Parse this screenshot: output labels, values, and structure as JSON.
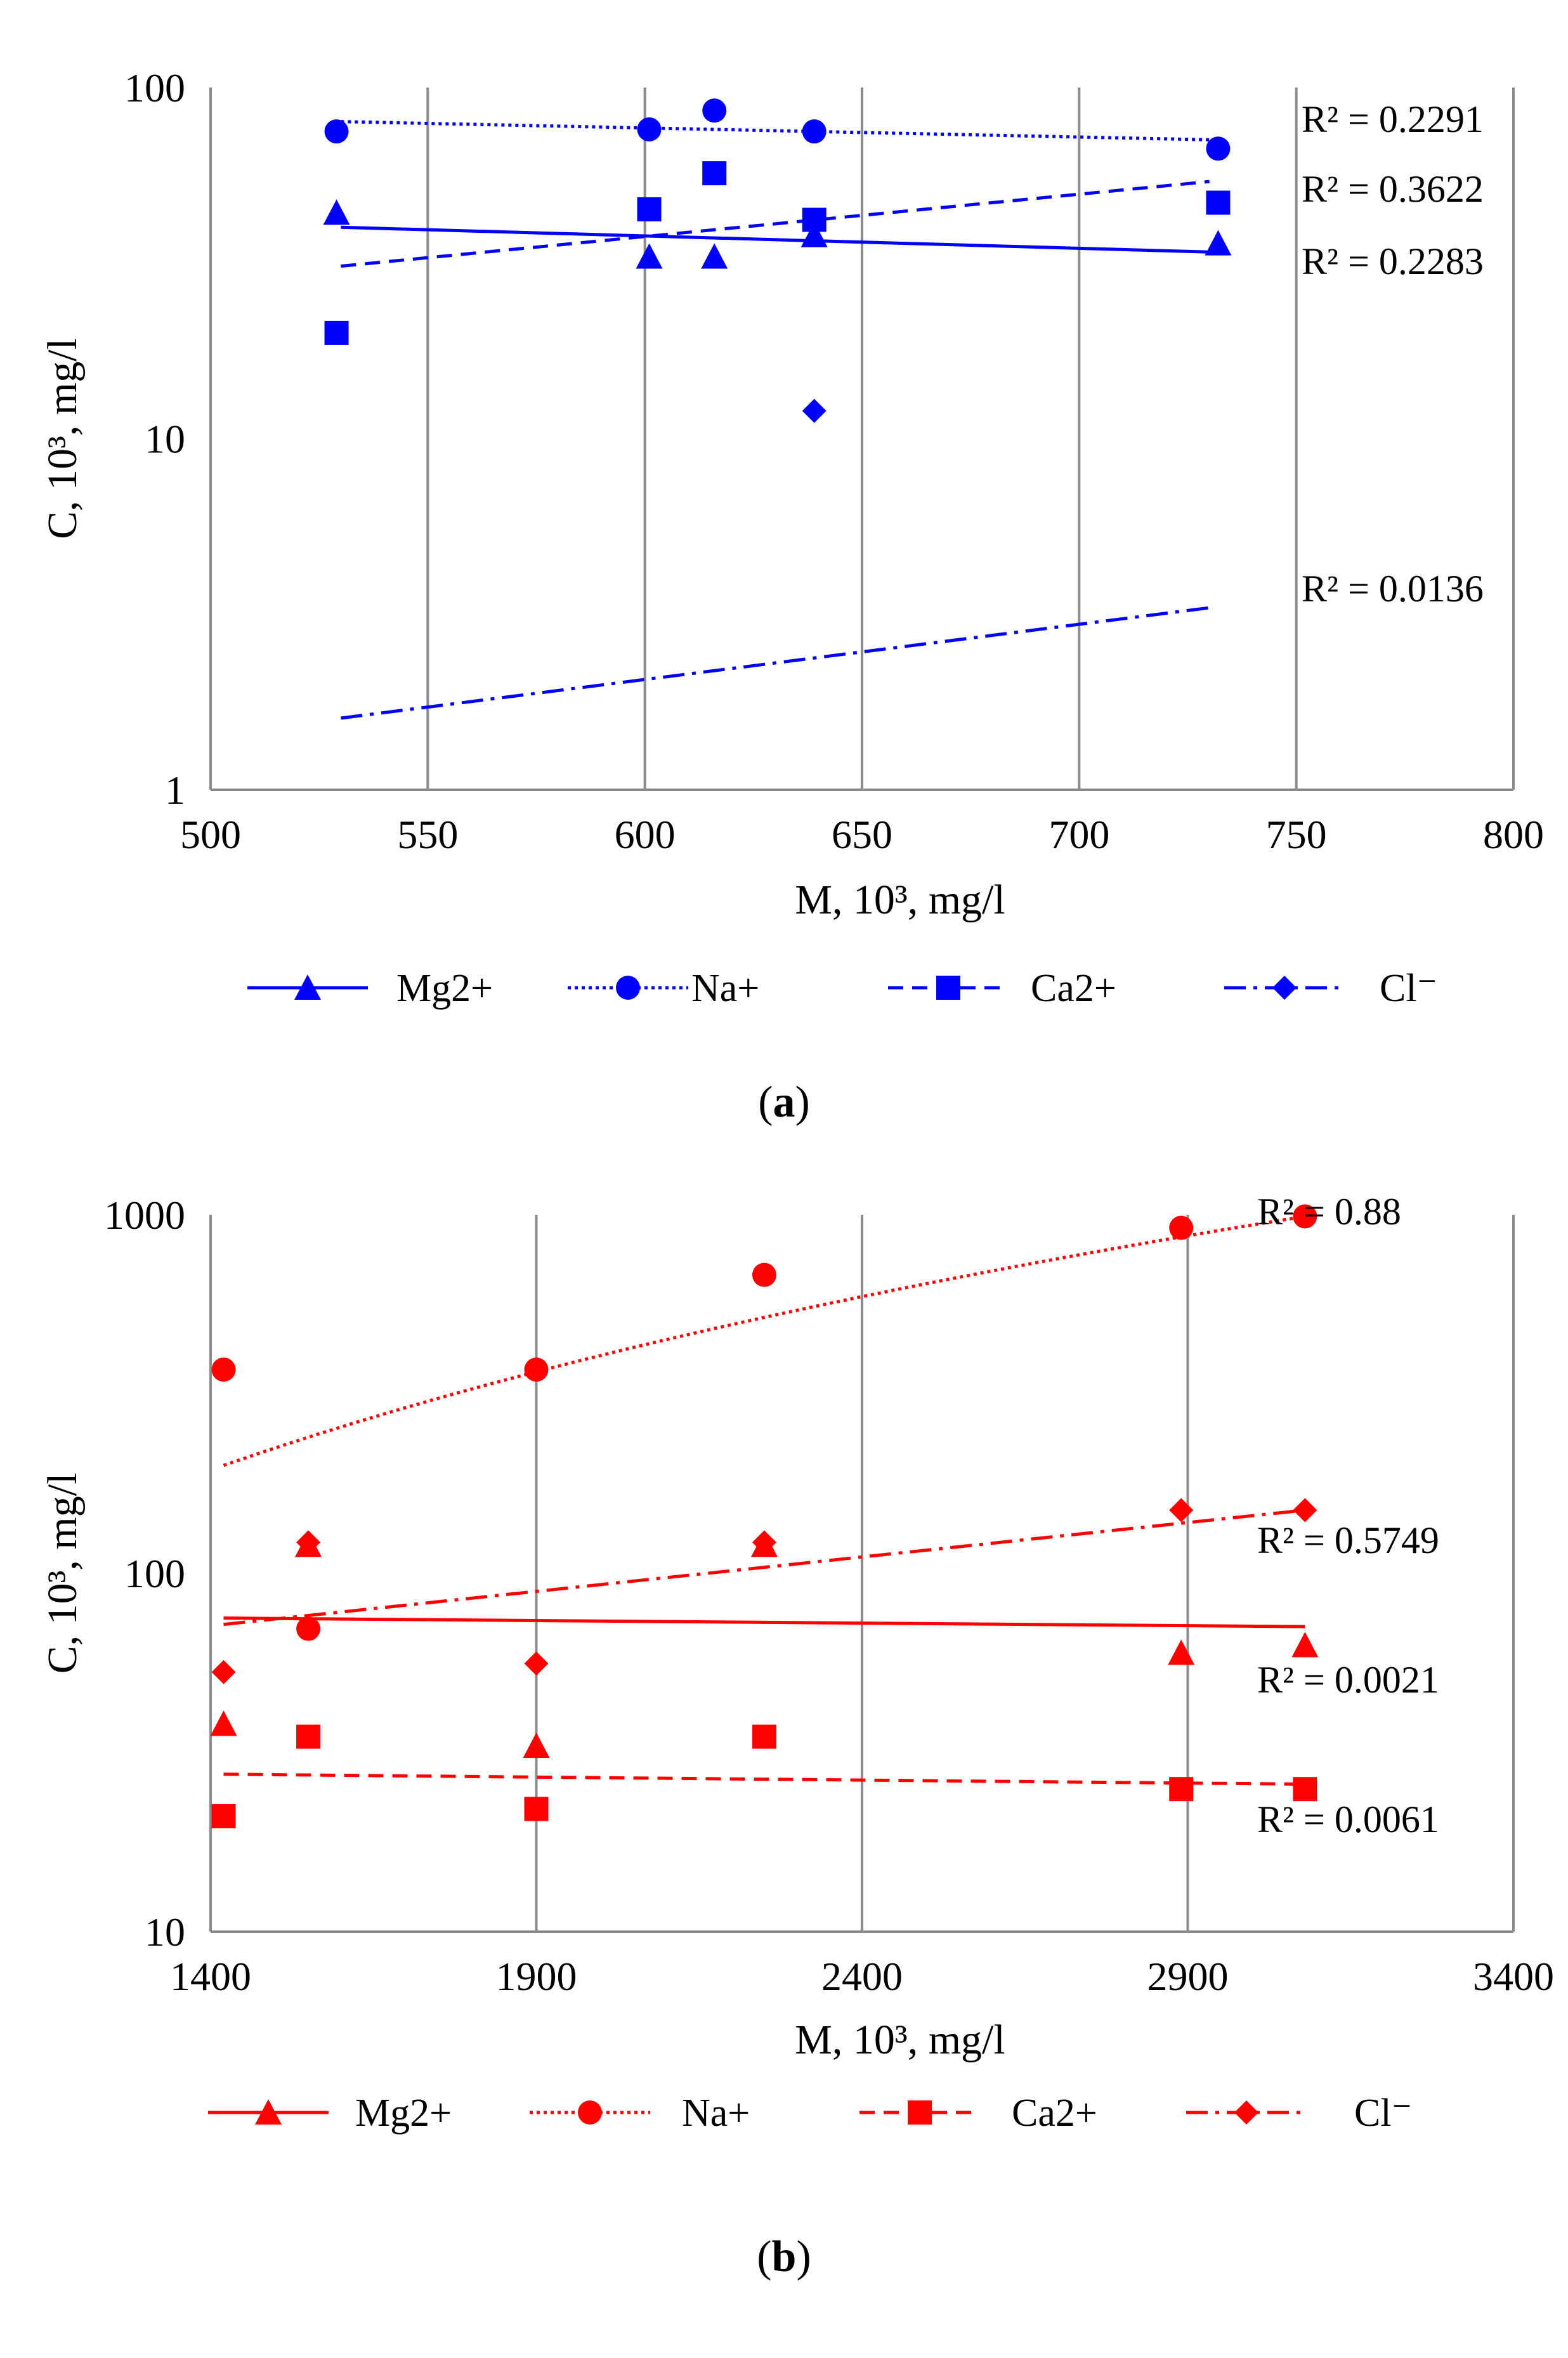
{
  "chart_data": [
    {
      "type": "scatter",
      "panel_label": "a",
      "xlabel": "M, 10³, mg/l",
      "ylabel": "C, 10³, mg/l",
      "xlim": [
        500,
        800
      ],
      "ylim": [
        1,
        100
      ],
      "yscale": "log",
      "grid": "vertical",
      "legend_position": "bottom",
      "color": "#0000ff",
      "x_ticks": [
        "500",
        "550",
        "600",
        "650",
        "700",
        "750",
        "800"
      ],
      "y_ticks": [
        "1",
        "10",
        "100"
      ],
      "series": [
        {
          "name": "Mg2+",
          "marker": "triangle",
          "line": "solid",
          "x": [
            529,
            601,
            616,
            639,
            732
          ],
          "y": [
            44,
            33,
            33,
            38,
            36
          ],
          "trend": [
            [
              530,
              40
            ],
            [
              730,
              34
            ]
          ],
          "r2": "R² = 0.2283"
        },
        {
          "name": "Na+",
          "marker": "circle",
          "line": "dotted",
          "x": [
            529,
            601,
            616,
            639,
            732
          ],
          "y": [
            75,
            76,
            86,
            75,
            67
          ],
          "trend": [
            [
              530,
              80
            ],
            [
              730,
              71
            ]
          ],
          "r2": "R² = 0.2291"
        },
        {
          "name": "Ca2+",
          "marker": "square",
          "line": "dashed",
          "x": [
            529,
            601,
            616,
            639,
            732
          ],
          "y": [
            20,
            45,
            57,
            42,
            47
          ],
          "trend": [
            [
              530,
              31
            ],
            [
              730,
              54
            ]
          ],
          "r2": "R² = 0.3622"
        },
        {
          "name": "Cl⁻",
          "marker": "diamond",
          "line": "dashdot",
          "x": [
            639
          ],
          "y": [
            12
          ],
          "trend": [
            [
              530,
              1.6
            ],
            [
              730,
              3.3
            ]
          ],
          "r2": "R² = 0.0136"
        }
      ],
      "caption": "(a)"
    },
    {
      "type": "scatter",
      "panel_label": "b",
      "xlabel": "M, 10³, mg/l",
      "ylabel": "C, 10³, mg/l",
      "xlim": [
        1400,
        3400
      ],
      "ylim": [
        10,
        1000
      ],
      "yscale": "log",
      "grid": "vertical",
      "legend_position": "bottom",
      "color": "#ff0000",
      "x_ticks": [
        "1400",
        "1900",
        "2400",
        "2900",
        "3400"
      ],
      "y_ticks": [
        "10",
        "100",
        "1000"
      ],
      "series": [
        {
          "name": "Mg2+",
          "marker": "triangle",
          "line": "solid",
          "x": [
            1420,
            1550,
            1900,
            2250,
            2890,
            3080
          ],
          "y": [
            38,
            120,
            33,
            120,
            60,
            63
          ],
          "trend": [
            [
              1420,
              75
            ],
            [
              3080,
              71
            ]
          ],
          "r2": "R² = 0.0021"
        },
        {
          "name": "Na+",
          "marker": "circle",
          "line": "dotted",
          "x": [
            1420,
            1550,
            1900,
            2250,
            2890,
            3080
          ],
          "y": [
            370,
            70,
            370,
            680,
            920,
            990
          ],
          "trend": [
            [
              1420,
              200
            ],
            [
              3080,
              990
            ]
          ],
          "r2": "R² = 0.88"
        },
        {
          "name": "Ca2+",
          "marker": "square",
          "line": "dashed",
          "x": [
            1420,
            1550,
            1900,
            2250,
            2890,
            3080
          ],
          "y": [
            21,
            35,
            22,
            35,
            25,
            25
          ],
          "trend": [
            [
              1420,
              27.5
            ],
            [
              3080,
              25.8
            ]
          ],
          "r2": "R² = 0.0061"
        },
        {
          "name": "Cl⁻",
          "marker": "diamond",
          "line": "dashdot",
          "x": [
            1420,
            1550,
            1900,
            2250,
            2890,
            3080
          ],
          "y": [
            53,
            122,
            56,
            122,
            150,
            150
          ],
          "trend": [
            [
              1420,
              72
            ],
            [
              3080,
              150
            ]
          ],
          "r2": "R² = 0.5749"
        }
      ],
      "caption": "(b)"
    }
  ]
}
